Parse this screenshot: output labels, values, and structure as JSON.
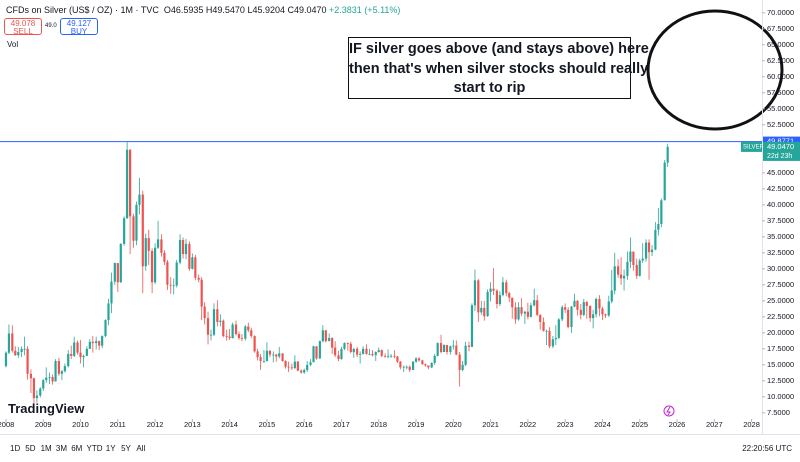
{
  "header": {
    "symbol": "CFDs on Silver (US$ / OZ) · 1M · TVC",
    "quote": "O46.5935 H49.5470 L45.9204 C49.0470",
    "change": "+2.3831 (+5.11%)",
    "sell_price": "49.078",
    "sell_label": "SELL",
    "spread": "49.0",
    "buy_price": "49.127",
    "buy_label": "BUY",
    "volume_label": "Vol"
  },
  "logo": "TradingView",
  "toolbar": {
    "ranges": [
      "1D",
      "5D",
      "1M",
      "3M",
      "6M",
      "YTD",
      "1Y",
      "5Y",
      "All"
    ],
    "clock": "22:20:56 UTC"
  },
  "chart_data": {
    "type": "candlestick",
    "up_color": "#26a69a",
    "down_color": "#ef5350",
    "grid": false,
    "annotation": [
      "IF silver goes above (and stays above) here,",
      "then that's when silver stocks should really",
      "start to rip"
    ],
    "price_line": {
      "value": 49.8771,
      "color": "#2962ff"
    },
    "last_price": {
      "name": "SILVER",
      "value": 49.047,
      "label": "49.0470",
      "countdown": "22d 23h"
    },
    "xlim": [
      2007.84,
      2028.28
    ],
    "xticks": [
      2008,
      2009,
      2010,
      2011,
      2012,
      2013,
      2014,
      2015,
      2016,
      2017,
      2018,
      2019,
      2020,
      2021,
      2022,
      2023,
      2024,
      2025,
      2026,
      2027,
      2028
    ],
    "ylim": [
      5.6,
      72
    ],
    "yticks": [
      {
        "value": 70,
        "label": "70.0000"
      },
      {
        "value": 67.5,
        "label": "67.5000"
      },
      {
        "value": 65,
        "label": "65.0000"
      },
      {
        "value": 62.5,
        "label": "62.5000"
      },
      {
        "value": 60,
        "label": "60.0000"
      },
      {
        "value": 57.5,
        "label": "57.5000"
      },
      {
        "value": 55,
        "label": "55.0000"
      },
      {
        "value": 52.5,
        "label": "52.5000"
      },
      {
        "value": 45,
        "label": "45.0000"
      },
      {
        "value": 42.5,
        "label": "42.5000"
      },
      {
        "value": 40,
        "label": "40.0000"
      },
      {
        "value": 37.5,
        "label": "37.5000"
      },
      {
        "value": 35,
        "label": "35.0000"
      },
      {
        "value": 32.5,
        "label": "32.5000"
      },
      {
        "value": 30,
        "label": "30.0000"
      },
      {
        "value": 27.5,
        "label": "27.5000"
      },
      {
        "value": 25,
        "label": "25.0000"
      },
      {
        "value": 22.5,
        "label": "22.5000"
      },
      {
        "value": 20,
        "label": "20.0000"
      },
      {
        "value": 17.5,
        "label": "17.5000"
      },
      {
        "value": 15,
        "label": "15.0000"
      },
      {
        "value": 12.5,
        "label": "12.5000"
      },
      {
        "value": 10,
        "label": "10.0000"
      },
      {
        "value": 7.5,
        "label": "7.5000"
      }
    ],
    "x": [
      2008,
      2008.08,
      2008.17,
      2008.25,
      2008.33,
      2008.42,
      2008.5,
      2008.58,
      2008.67,
      2008.75,
      2008.83,
      2008.92,
      2009,
      2009.08,
      2009.17,
      2009.25,
      2009.33,
      2009.42,
      2009.5,
      2009.58,
      2009.67,
      2009.75,
      2009.83,
      2009.92,
      2010,
      2010.08,
      2010.17,
      2010.25,
      2010.33,
      2010.42,
      2010.5,
      2010.58,
      2010.67,
      2010.75,
      2010.83,
      2010.92,
      2011,
      2011.08,
      2011.17,
      2011.25,
      2011.33,
      2011.42,
      2011.5,
      2011.58,
      2011.67,
      2011.75,
      2011.83,
      2011.92,
      2012,
      2012.08,
      2012.17,
      2012.25,
      2012.33,
      2012.42,
      2012.5,
      2012.58,
      2012.67,
      2012.75,
      2012.83,
      2012.92,
      2013,
      2013.08,
      2013.17,
      2013.25,
      2013.33,
      2013.42,
      2013.5,
      2013.58,
      2013.67,
      2013.75,
      2013.83,
      2013.92,
      2014,
      2014.08,
      2014.17,
      2014.25,
      2014.33,
      2014.42,
      2014.5,
      2014.58,
      2014.67,
      2014.75,
      2014.83,
      2014.92,
      2015,
      2015.08,
      2015.17,
      2015.25,
      2015.33,
      2015.42,
      2015.5,
      2015.58,
      2015.67,
      2015.75,
      2015.83,
      2015.92,
      2016,
      2016.08,
      2016.17,
      2016.25,
      2016.33,
      2016.42,
      2016.5,
      2016.58,
      2016.67,
      2016.75,
      2016.83,
      2016.92,
      2017,
      2017.08,
      2017.17,
      2017.25,
      2017.33,
      2017.42,
      2017.5,
      2017.58,
      2017.67,
      2017.75,
      2017.83,
      2017.92,
      2018,
      2018.08,
      2018.17,
      2018.25,
      2018.33,
      2018.42,
      2018.5,
      2018.58,
      2018.67,
      2018.75,
      2018.83,
      2018.92,
      2019,
      2019.08,
      2019.17,
      2019.25,
      2019.33,
      2019.42,
      2019.5,
      2019.58,
      2019.67,
      2019.75,
      2019.83,
      2019.92,
      2020,
      2020.08,
      2020.17,
      2020.25,
      2020.33,
      2020.42,
      2020.5,
      2020.58,
      2020.67,
      2020.75,
      2020.83,
      2020.92,
      2021,
      2021.08,
      2021.17,
      2021.25,
      2021.33,
      2021.42,
      2021.5,
      2021.58,
      2021.67,
      2021.75,
      2021.83,
      2021.92,
      2022,
      2022.08,
      2022.17,
      2022.25,
      2022.33,
      2022.42,
      2022.5,
      2022.58,
      2022.67,
      2022.75,
      2022.83,
      2022.92,
      2023,
      2023.08,
      2023.17,
      2023.25,
      2023.33,
      2023.42,
      2023.5,
      2023.58,
      2023.67,
      2023.75,
      2023.83,
      2023.92,
      2024,
      2024.08,
      2024.17,
      2024.25,
      2024.33,
      2024.42,
      2024.5,
      2024.58,
      2024.67,
      2024.75,
      2024.83,
      2024.92,
      2025,
      2025.08,
      2025.17,
      2025.25,
      2025.33,
      2025.42,
      2025.5,
      2025.58,
      2025.67,
      2025.75
    ],
    "open": [
      14.8,
      16.9,
      19.9,
      17.2,
      16.5,
      17.0,
      17.5,
      17.5,
      13.6,
      12.9,
      9.8,
      10.2,
      11.3,
      12.6,
      13.0,
      13.1,
      12.4,
      15.6,
      13.6,
      14.0,
      14.8,
      16.7,
      16.4,
      18.5,
      16.9,
      16.2,
      16.4,
      17.5,
      18.6,
      18.4,
      18.7,
      18.0,
      19.5,
      22.0,
      24.6,
      28.0,
      30.9,
      27.9,
      33.9,
      37.9,
      48.6,
      38.2,
      34.4,
      40.0,
      41.6,
      30.4,
      34.8,
      32.8,
      27.9,
      33.3,
      34.6,
      32.5,
      31.1,
      27.5,
      27.4,
      27.4,
      31.0,
      34.5,
      32.3,
      33.9,
      30.0,
      31.8,
      28.6,
      28.3,
      24.1,
      22.3,
      19.7,
      19.7,
      23.7,
      21.7,
      21.9,
      19.5,
      19.4,
      19.2,
      21.3,
      19.8,
      19.2,
      19.1,
      21.0,
      20.4,
      19.5,
      17.1,
      16.2,
      15.6,
      15.6,
      17.2,
      16.6,
      16.6,
      16.3,
      16.8,
      15.6,
      14.7,
      14.6,
      14.5,
      15.5,
      14.1,
      13.8,
      14.2,
      15.0,
      15.4,
      17.9,
      16.0,
      18.7,
      20.4,
      18.7,
      19.2,
      17.7,
      16.5,
      15.9,
      17.5,
      18.4,
      18.3,
      17.0,
      17.5,
      16.6,
      16.7,
      17.5,
      16.7,
      16.7,
      16.5,
      17.0,
      17.3,
      16.4,
      16.3,
      16.4,
      16.4,
      16.3,
      15.5,
      14.6,
      14.7,
      14.7,
      14.2,
      15.5,
      16.0,
      15.7,
      15.1,
      14.9,
      14.6,
      15.3,
      16.4,
      18.4,
      17.0,
      18.1,
      17.0,
      17.9,
      18.0,
      16.6,
      14.2,
      15.0,
      18.0,
      17.8,
      24.3,
      28.2,
      23.2,
      23.9,
      22.6,
      26.4,
      26.9,
      26.6,
      24.5,
      25.9,
      27.9,
      26.2,
      25.5,
      24.0,
      22.1,
      24.0,
      23.0,
      23.3,
      22.5,
      24.3,
      25.1,
      22.8,
      21.7,
      20.3,
      20.3,
      17.9,
      19.0,
      19.2,
      22.1,
      24.0,
      23.6,
      20.9,
      24.1,
      25.0,
      23.6,
      22.8,
      24.8,
      24.2,
      22.3,
      22.9,
      25.3,
      23.8,
      22.9,
      22.7,
      24.9,
      26.6,
      30.4,
      29.1,
      28.5,
      28.9,
      31.1,
      32.7,
      30.6,
      28.9,
      31.3,
      31.6,
      34.1,
      32.6,
      33.0,
      36.1,
      37.0,
      40.7,
      46.5935
    ],
    "high": [
      17.1,
      21.3,
      21.2,
      17.9,
      17.8,
      17.9,
      19.4,
      17.9,
      14.3,
      13.0,
      11.0,
      11.5,
      12.8,
      14.6,
      13.8,
      13.5,
      15.9,
      16.1,
      14.2,
      15.2,
      17.3,
      18.0,
      19.4,
      18.8,
      18.9,
      16.6,
      17.9,
      19.0,
      19.5,
      19.4,
      18.8,
      19.6,
      22.1,
      25.3,
      29.4,
      31.0,
      30.9,
      34.0,
      38.2,
      49.8,
      48.7,
      38.6,
      40.5,
      44.2,
      42.2,
      35.5,
      36.1,
      33.2,
      34.0,
      37.5,
      35.4,
      32.9,
      31.4,
      28.7,
      28.5,
      31.4,
      35.4,
      34.9,
      34.7,
      34.3,
      32.4,
      32.2,
      29.1,
      28.7,
      24.8,
      23.3,
      20.5,
      24.6,
      25.1,
      22.9,
      22.1,
      20.5,
      20.6,
      21.6,
      21.9,
      20.2,
      19.8,
      21.2,
      21.6,
      20.8,
      19.6,
      17.5,
      16.7,
      17.3,
      18.5,
      17.3,
      17.1,
      16.7,
      17.8,
      16.8,
      15.7,
      15.5,
      15.2,
      16.5,
      15.6,
      14.3,
      14.4,
      15.6,
      15.9,
      18.0,
      17.9,
      18.8,
      21.2,
      20.4,
      19.9,
      19.3,
      18.7,
      17.2,
      17.8,
      18.5,
      18.5,
      18.6,
      17.6,
      17.8,
      17.1,
      17.9,
      18.2,
      17.5,
      17.3,
      17.1,
      17.7,
      17.4,
      16.8,
      17.4,
      16.7,
      17.3,
      16.4,
      15.6,
      14.9,
      14.9,
      14.9,
      15.6,
      16.2,
      16.2,
      15.8,
      15.2,
      14.9,
      15.4,
      16.7,
      18.5,
      19.7,
      18.2,
      18.1,
      18.0,
      18.9,
      18.8,
      17.0,
      15.6,
      18.6,
      18.6,
      24.6,
      29.9,
      28.4,
      25.0,
      25.0,
      26.8,
      27.9,
      30.1,
      26.8,
      26.5,
      28.7,
      28.3,
      26.4,
      24.9,
      24.8,
      24.8,
      25.4,
      23.4,
      24.7,
      24.7,
      26.9,
      25.9,
      22.9,
      22.4,
      20.5,
      20.9,
      19.5,
      21.2,
      22.3,
      24.3,
      24.6,
      24.0,
      24.2,
      26.1,
      25.1,
      24.5,
      25.3,
      25.0,
      24.3,
      23.6,
      25.5,
      25.9,
      24.1,
      23.0,
      25.8,
      29.8,
      32.5,
      31.5,
      31.8,
      29.9,
      32.7,
      34.9,
      32.5,
      31.6,
      31.6,
      34.0,
      34.6,
      34.6,
      33.7,
      37.3,
      39.5,
      41.0,
      47.0,
      49.547
    ],
    "low": [
      14.6,
      16.7,
      16.9,
      16.4,
      16.1,
      16.2,
      16.5,
      12.7,
      10.6,
      8.8,
      9.1,
      9.9,
      10.9,
      12.2,
      12.0,
      11.9,
      12.4,
      13.3,
      12.6,
      13.8,
      14.6,
      15.9,
      16.2,
      16.6,
      15.2,
      14.6,
      16.4,
      17.5,
      16.9,
      17.4,
      17.3,
      17.6,
      19.3,
      21.2,
      23.1,
      27.5,
      26.4,
      27.8,
      33.6,
      37.8,
      32.3,
      33.3,
      33.7,
      38.5,
      26.2,
      29.7,
      30.6,
      26.2,
      27.6,
      33.1,
      31.9,
      30.6,
      26.7,
      26.1,
      26.0,
      27.1,
      30.7,
      31.6,
      31.5,
      29.7,
      29.9,
      28.2,
      27.9,
      22.0,
      21.3,
      18.2,
      18.8,
      19.5,
      21.0,
      21.0,
      19.3,
      18.8,
      18.9,
      19.1,
      19.6,
      18.9,
      18.7,
      18.8,
      20.1,
      19.2,
      16.9,
      15.7,
      14.2,
      15.3,
      15.5,
      16.2,
      15.4,
      15.5,
      16.0,
      15.5,
      14.4,
      13.9,
      14.2,
      14.3,
      14.0,
      13.6,
      13.6,
      13.9,
      14.8,
      15.4,
      15.8,
      15.9,
      18.5,
      18.5,
      18.7,
      16.7,
      16.2,
      15.6,
      15.8,
      17.3,
      17.2,
      16.8,
      16.1,
      16.2,
      15.2,
      16.6,
      16.6,
      16.5,
      16.3,
      15.6,
      16.9,
      16.2,
      16.1,
      16.0,
      16.1,
      16.0,
      15.3,
      14.3,
      13.9,
      14.3,
      13.9,
      14.2,
      15.3,
      15.5,
      15.0,
      14.7,
      14.3,
      14.5,
      15.0,
      16.3,
      16.8,
      17.0,
      16.6,
      16.6,
      17.4,
      16.5,
      11.6,
      14.0,
      14.8,
      17.1,
      17.8,
      23.4,
      21.7,
      22.8,
      21.9,
      22.5,
      24.9,
      25.9,
      23.8,
      24.2,
      25.7,
      25.7,
      24.8,
      22.2,
      21.4,
      21.9,
      22.6,
      21.4,
      22.1,
      22.4,
      24.1,
      22.6,
      20.5,
      20.2,
      18.1,
      17.6,
      17.6,
      18.1,
      19.0,
      21.8,
      23.1,
      20.7,
      20.0,
      24.0,
      22.7,
      22.1,
      22.6,
      22.2,
      21.7,
      20.7,
      22.4,
      22.6,
      22.0,
      22.3,
      22.5,
      24.6,
      26.0,
      28.6,
      27.5,
      26.6,
      28.3,
      30.1,
      29.7,
      28.4,
      28.8,
      30.9,
      31.1,
      28.3,
      32.0,
      32.9,
      35.2,
      36.5,
      40.7,
      45.9204
    ],
    "close": [
      16.9,
      19.9,
      17.2,
      16.5,
      17.0,
      17.5,
      17.5,
      13.6,
      12.9,
      9.8,
      10.2,
      11.3,
      12.6,
      13.0,
      13.1,
      12.4,
      15.6,
      13.6,
      14.0,
      14.8,
      16.7,
      16.4,
      18.5,
      16.9,
      16.2,
      16.4,
      17.5,
      18.6,
      18.4,
      18.7,
      18.0,
      19.5,
      22.0,
      24.6,
      28.0,
      30.9,
      27.9,
      33.9,
      37.9,
      48.6,
      38.2,
      34.4,
      40.0,
      41.6,
      30.4,
      34.8,
      32.8,
      27.9,
      33.3,
      34.6,
      32.5,
      31.1,
      27.5,
      27.4,
      27.4,
      31.0,
      34.5,
      32.3,
      33.9,
      30.0,
      31.8,
      28.6,
      28.3,
      24.1,
      22.3,
      19.7,
      19.7,
      23.7,
      21.7,
      21.9,
      19.5,
      19.4,
      19.2,
      21.3,
      19.8,
      19.2,
      19.1,
      21.0,
      20.4,
      19.5,
      17.1,
      16.2,
      15.6,
      15.6,
      17.2,
      16.6,
      16.6,
      16.3,
      16.8,
      15.6,
      14.7,
      14.6,
      14.5,
      15.5,
      14.1,
      13.8,
      14.2,
      15.0,
      15.4,
      17.9,
      16.0,
      18.7,
      20.4,
      18.7,
      19.2,
      17.7,
      16.5,
      15.9,
      17.5,
      18.4,
      18.3,
      17.0,
      17.5,
      16.6,
      16.7,
      17.5,
      16.7,
      16.7,
      16.5,
      17.0,
      17.3,
      16.4,
      16.3,
      16.4,
      16.4,
      16.3,
      15.5,
      14.6,
      14.7,
      14.7,
      14.2,
      15.5,
      16.0,
      15.7,
      15.1,
      14.9,
      14.6,
      15.3,
      16.4,
      18.4,
      17.0,
      18.1,
      17.0,
      17.9,
      18.0,
      16.6,
      14.2,
      15.0,
      18.0,
      17.8,
      24.3,
      28.2,
      23.2,
      23.9,
      22.6,
      26.4,
      26.9,
      26.6,
      24.5,
      25.9,
      27.9,
      26.2,
      25.5,
      24.0,
      22.1,
      24.0,
      23.0,
      23.3,
      22.5,
      24.3,
      25.1,
      22.8,
      21.7,
      20.3,
      20.3,
      17.9,
      19.0,
      19.2,
      22.1,
      24.0,
      23.6,
      20.9,
      24.1,
      25.0,
      23.6,
      22.8,
      24.8,
      24.2,
      22.3,
      22.9,
      25.3,
      23.8,
      22.9,
      22.7,
      24.9,
      26.6,
      30.4,
      29.1,
      28.5,
      28.9,
      31.1,
      32.7,
      30.6,
      28.9,
      31.3,
      31.6,
      34.1,
      32.6,
      33.0,
      36.1,
      37.0,
      40.7,
      46.5935,
      49.047
    ]
  }
}
